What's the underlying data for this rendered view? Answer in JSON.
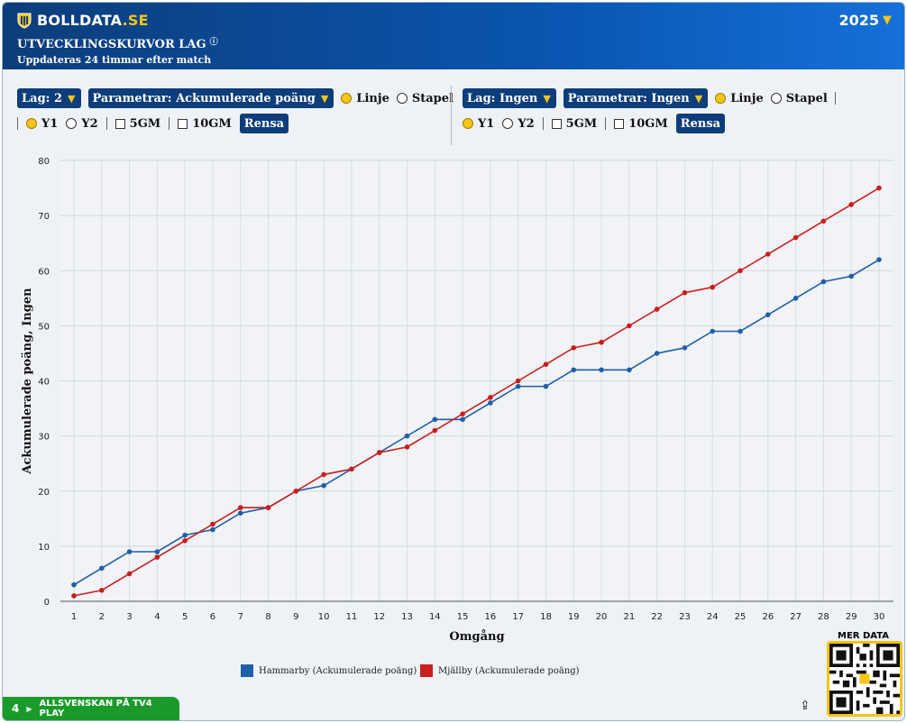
{
  "header": {
    "brand_main": "BOLLDATA",
    "brand_suffix": ".SE",
    "title": "UTVECKLINGSKURVOR LAG",
    "info_icon": "ⓘ",
    "subtitle": "Uppdateras 24 timmar efter match",
    "year": "2025"
  },
  "controls_left": {
    "team_label": "Lag: 2",
    "param_label": "Parametrar: Ackumulerade poäng",
    "linje": "Linje",
    "stapel": "Stapel",
    "y1": "Y1",
    "y2": "Y2",
    "gm5": "5GM",
    "gm10": "10GM",
    "clear": "Rensa"
  },
  "controls_right": {
    "team_label": "Lag: Ingen",
    "param_label": "Parametrar: Ingen",
    "linje": "Linje",
    "stapel": "Stapel",
    "y1": "Y1",
    "y2": "Y2",
    "gm5": "5GM",
    "gm10": "10GM",
    "clear": "Rensa"
  },
  "chart_data": {
    "type": "line",
    "xlabel": "Omgång",
    "ylabel": "Ackumulerade poäng, Ingen",
    "ylim": [
      0,
      80
    ],
    "yticks": [
      0,
      10,
      20,
      30,
      40,
      50,
      60,
      70,
      80
    ],
    "x": [
      1,
      2,
      3,
      4,
      5,
      6,
      7,
      8,
      9,
      10,
      11,
      12,
      13,
      14,
      15,
      16,
      17,
      18,
      19,
      20,
      21,
      22,
      23,
      24,
      25,
      26,
      27,
      28,
      29,
      30
    ],
    "grid": true,
    "series": [
      {
        "name": "Hammarby (Ackumulerade poäng)",
        "color": "#1f5fa8",
        "values": [
          3,
          6,
          9,
          9,
          12,
          13,
          16,
          17,
          20,
          21,
          24,
          27,
          30,
          33,
          33,
          36,
          39,
          39,
          42,
          42,
          42,
          45,
          46,
          49,
          49,
          52,
          55,
          58,
          59,
          62
        ]
      },
      {
        "name": "Mjällby (Ackumulerade poäng)",
        "color": "#c81e1e",
        "values": [
          1,
          2,
          5,
          8,
          11,
          14,
          17,
          17,
          20,
          23,
          24,
          27,
          28,
          31,
          34,
          37,
          40,
          43,
          46,
          47,
          50,
          53,
          56,
          57,
          60,
          63,
          66,
          69,
          72,
          75
        ]
      }
    ]
  },
  "footer": {
    "tv4_number": "4",
    "tv4_label": "ALLSVENSKAN PÅ TV4 PLAY",
    "more_data": "MER DATA"
  },
  "colors": {
    "brand_blue": "#0d3d7a",
    "accent_yellow": "#f5c518",
    "tv4_green": "#1a9a2a"
  }
}
